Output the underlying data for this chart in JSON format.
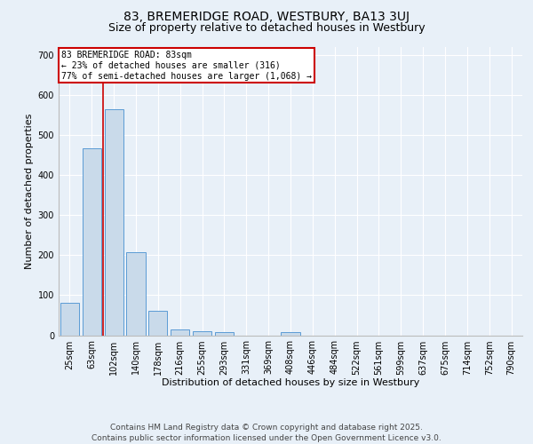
{
  "title1": "83, BREMERIDGE ROAD, WESTBURY, BA13 3UJ",
  "title2": "Size of property relative to detached houses in Westbury",
  "xlabel": "Distribution of detached houses by size in Westbury",
  "ylabel": "Number of detached properties",
  "categories": [
    "25sqm",
    "63sqm",
    "102sqm",
    "140sqm",
    "178sqm",
    "216sqm",
    "255sqm",
    "293sqm",
    "331sqm",
    "369sqm",
    "408sqm",
    "446sqm",
    "484sqm",
    "522sqm",
    "561sqm",
    "599sqm",
    "637sqm",
    "675sqm",
    "714sqm",
    "752sqm",
    "790sqm"
  ],
  "values": [
    80,
    467,
    563,
    207,
    60,
    15,
    10,
    7,
    0,
    0,
    8,
    0,
    0,
    0,
    0,
    0,
    0,
    0,
    0,
    0,
    0
  ],
  "bar_color": "#c9daea",
  "bar_edge_color": "#5b9bd5",
  "annotation_text_line1": "83 BREMERIDGE ROAD: 83sqm",
  "annotation_text_line2": "← 23% of detached houses are smaller (316)",
  "annotation_text_line3": "77% of semi-detached houses are larger (1,068) →",
  "annotation_box_color": "#cc0000",
  "vline_color": "#cc0000",
  "vline_x": 1.5,
  "ylim": [
    0,
    720
  ],
  "yticks": [
    0,
    100,
    200,
    300,
    400,
    500,
    600,
    700
  ],
  "background_color": "#e8f0f8",
  "footer_line1": "Contains HM Land Registry data © Crown copyright and database right 2025.",
  "footer_line2": "Contains public sector information licensed under the Open Government Licence v3.0.",
  "title1_fontsize": 10,
  "title2_fontsize": 9,
  "axis_label_fontsize": 8,
  "tick_fontsize": 7,
  "annotation_fontsize": 7,
  "footer_fontsize": 6.5
}
